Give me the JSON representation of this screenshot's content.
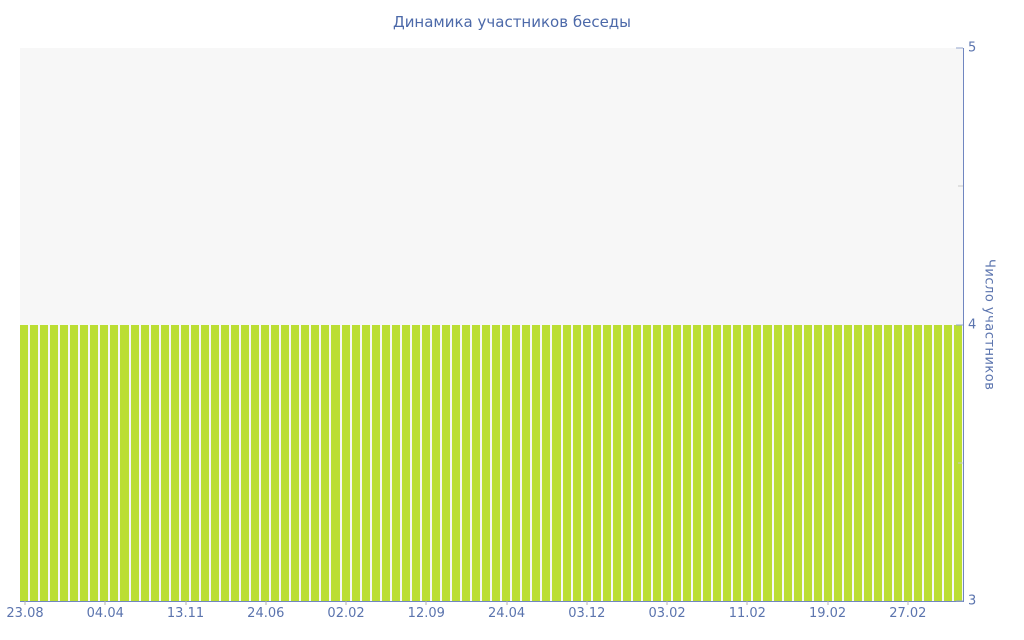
{
  "page": {
    "background": "#ffffff"
  },
  "chart": {
    "title": "Динамика участников беседы",
    "y_axis_title": "Число участников"
  },
  "chart_data": {
    "type": "bar",
    "title": "Динамика участников беседы",
    "xlabel": "",
    "ylabel": "Число участников",
    "ylim": [
      3,
      5
    ],
    "y_major_ticks": [
      5,
      4,
      3
    ],
    "y_minor_ticks": [
      4.5,
      3.5
    ],
    "grid": false,
    "legend_position": "none",
    "x_tick_labels": [
      "23.08",
      "04.04",
      "13.11",
      "24.06",
      "02.02",
      "12.09",
      "24.04",
      "03.12",
      "03.02",
      "11.02",
      "19.02",
      "27.02"
    ],
    "bars_per_x_tick": 8,
    "bar_count": 94,
    "values": [
      4,
      4,
      4,
      4,
      4,
      4,
      4,
      4,
      4,
      4,
      4,
      4,
      4,
      4,
      4,
      4,
      4,
      4,
      4,
      4,
      4,
      4,
      4,
      4,
      4,
      4,
      4,
      4,
      4,
      4,
      4,
      4,
      4,
      4,
      4,
      4,
      4,
      4,
      4,
      4,
      4,
      4,
      4,
      4,
      4,
      4,
      4,
      4,
      4,
      4,
      4,
      4,
      4,
      4,
      4,
      4,
      4,
      4,
      4,
      4,
      4,
      4,
      4,
      4,
      4,
      4,
      4,
      4,
      4,
      4,
      4,
      4,
      4,
      4,
      4,
      4,
      4,
      4,
      4,
      4,
      4,
      4,
      4,
      4,
      4,
      4,
      4,
      4,
      4,
      4,
      4,
      4,
      4,
      4
    ],
    "bar_color": "#bbde33",
    "plot_background": "#f7f7f7",
    "axis_color": "#7086c0",
    "label_color": "#5b74ae",
    "title_color": "#4c69a9",
    "minor_tick_color": "#c9c9c9"
  }
}
